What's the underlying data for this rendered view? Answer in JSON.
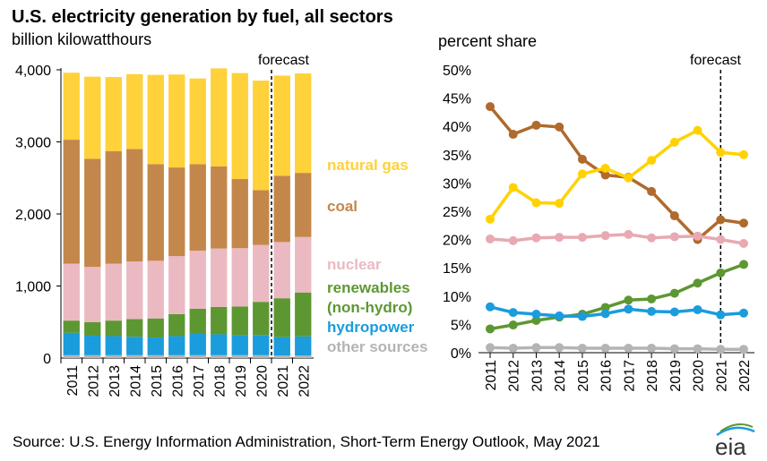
{
  "title": "U.S. electricity generation by fuel, all sectors",
  "source": "Source: U.S. Energy Information Administration, Short-Term Energy Outlook, May 2021",
  "logo_text": "eia",
  "colors": {
    "natural_gas": "#FFD13A",
    "coal": "#C4874B",
    "nuclear": "#EBB9C1",
    "renewables": "#5D9732",
    "hydropower": "#1A9CDD",
    "other": "#B4B4B4",
    "gas_line": "#FFD200",
    "coal_line": "#B06A2C",
    "nuclear_line": "#E8A9B2",
    "renew_line": "#5D9732",
    "hydro_line": "#1A9CDD",
    "other_line": "#B4B4B4"
  },
  "chart_data": [
    {
      "type": "bar",
      "stacked": true,
      "ylabel": "billion kilowatthours",
      "ylim": [
        0,
        4000
      ],
      "yticks": [
        "0",
        "1,000",
        "2,000",
        "3,000",
        "4,000"
      ],
      "forecast_label": "forecast",
      "categories": [
        "2011",
        "2012",
        "2013",
        "2014",
        "2015",
        "2016",
        "2017",
        "2018",
        "2019",
        "2020",
        "2021",
        "2022"
      ],
      "series": [
        {
          "key": "other",
          "values": [
            40,
            40,
            40,
            40,
            40,
            40,
            40,
            40,
            40,
            40,
            35,
            35
          ]
        },
        {
          "key": "hydropower",
          "values": [
            310,
            270,
            265,
            255,
            245,
            265,
            295,
            290,
            275,
            280,
            255,
            265
          ]
        },
        {
          "key": "renewables",
          "values": [
            170,
            190,
            215,
            245,
            265,
            305,
            350,
            380,
            400,
            460,
            540,
            610
          ]
        },
        {
          "key": "nuclear",
          "values": [
            790,
            765,
            790,
            800,
            800,
            805,
            805,
            810,
            810,
            790,
            780,
            770
          ]
        },
        {
          "key": "coal",
          "values": [
            1720,
            1500,
            1560,
            1560,
            1340,
            1230,
            1200,
            1140,
            960,
            760,
            920,
            890
          ]
        },
        {
          "key": "natural_gas",
          "values": [
            930,
            1140,
            1030,
            1040,
            1240,
            1290,
            1190,
            1360,
            1470,
            1520,
            1390,
            1380
          ]
        }
      ],
      "legend": [
        {
          "key": "natural_gas",
          "label": "natural gas"
        },
        {
          "key": "coal",
          "label": "coal"
        },
        {
          "key": "nuclear",
          "label": "nuclear"
        },
        {
          "key": "renewables",
          "label": "renewables"
        },
        {
          "key": "renewables",
          "label": "(non-hydro)"
        },
        {
          "key": "hydropower",
          "label": "hydropower"
        },
        {
          "key": "other",
          "label": "other sources"
        }
      ]
    },
    {
      "type": "line",
      "ylabel": "percent share",
      "ylim": [
        0,
        50
      ],
      "yticks": [
        "0%",
        "5%",
        "10%",
        "15%",
        "20%",
        "25%",
        "30%",
        "35%",
        "40%",
        "45%",
        "50%"
      ],
      "forecast_label": "forecast",
      "x": [
        "2011",
        "2012",
        "2013",
        "2014",
        "2015",
        "2016",
        "2017",
        "2018",
        "2019",
        "2020",
        "2021",
        "2022"
      ],
      "series": [
        {
          "key": "coal_line",
          "values": [
            43.5,
            38.6,
            40.2,
            39.9,
            34.2,
            31.4,
            31.0,
            28.5,
            24.2,
            20.0,
            23.5,
            22.9
          ]
        },
        {
          "key": "gas_line",
          "values": [
            23.6,
            29.2,
            26.5,
            26.4,
            31.6,
            32.6,
            30.9,
            34.0,
            37.2,
            39.3,
            35.4,
            35.0
          ]
        },
        {
          "key": "nuclear_line",
          "values": [
            20.1,
            19.8,
            20.3,
            20.4,
            20.4,
            20.7,
            20.9,
            20.3,
            20.5,
            20.6,
            20.0,
            19.3
          ]
        },
        {
          "key": "renew_line",
          "values": [
            4.2,
            4.9,
            5.7,
            6.3,
            6.8,
            8.0,
            9.3,
            9.5,
            10.5,
            12.3,
            14.1,
            15.6
          ]
        },
        {
          "key": "hydro_line",
          "values": [
            8.1,
            7.1,
            6.8,
            6.5,
            6.4,
            6.9,
            7.7,
            7.3,
            7.2,
            7.6,
            6.7,
            7.0
          ]
        },
        {
          "key": "other_line",
          "values": [
            0.9,
            0.8,
            0.9,
            0.9,
            0.8,
            0.8,
            0.8,
            0.8,
            0.7,
            0.7,
            0.6,
            0.6
          ]
        }
      ]
    }
  ]
}
